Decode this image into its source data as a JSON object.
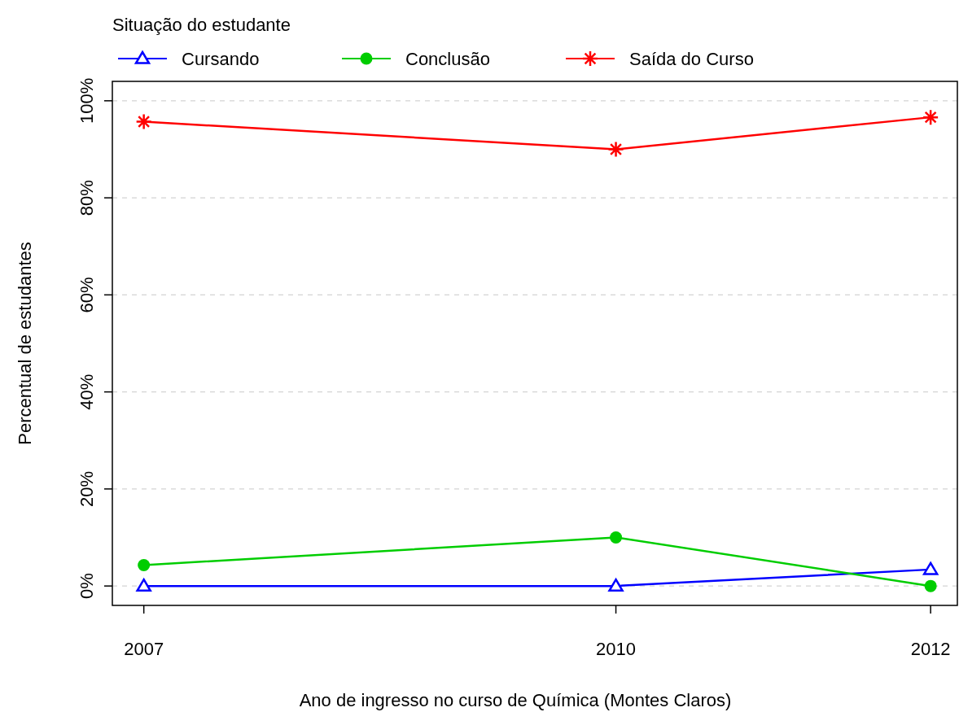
{
  "chart_data": {
    "type": "line",
    "xlabel": "Ano de ingresso no curso de Química (Montes Claros)",
    "ylabel": "Percentual de estudantes",
    "legend_title": "Situação do estudante",
    "legend": "top left",
    "grid": "y",
    "x": [
      2007,
      2010,
      2012
    ],
    "xlim": [
      2006.8,
      2012.17
    ],
    "xticks": [
      2007,
      2010,
      2012
    ],
    "ylim": [
      -4,
      104
    ],
    "yticks": [
      {
        "value": 0,
        "label": "0%"
      },
      {
        "value": 20,
        "label": "20%"
      },
      {
        "value": 40,
        "label": "40%"
      },
      {
        "value": 60,
        "label": "60%"
      },
      {
        "value": 80,
        "label": "80%"
      },
      {
        "value": 100,
        "label": "100%"
      }
    ],
    "series": [
      {
        "name": "Cursando",
        "color": "#0000ff",
        "marker": "triangle",
        "values": [
          0,
          0,
          3.4
        ]
      },
      {
        "name": "Conclusão",
        "color": "#00cd00",
        "marker": "circle",
        "values": [
          4.3,
          10,
          0
        ]
      },
      {
        "name": "Saída do Curso",
        "color": "#ff0000",
        "marker": "cross",
        "values": [
          95.7,
          90,
          96.6
        ]
      }
    ]
  }
}
